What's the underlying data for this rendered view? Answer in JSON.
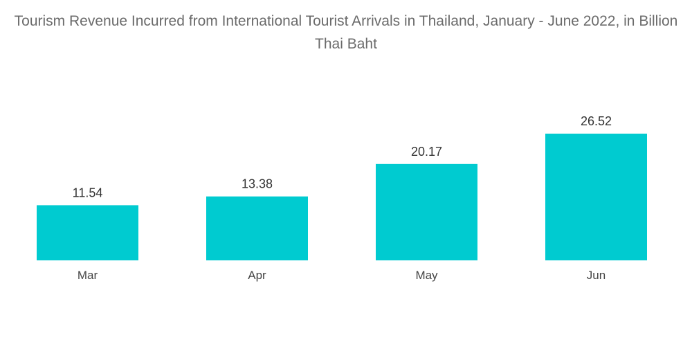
{
  "title": "Tourism Revenue Incurred from International Tourist Arrivals in Thailand, January - June 2022, in Billion Thai Baht",
  "chart_data": {
    "type": "bar",
    "title": "Tourism Revenue Incurred from International Tourist Arrivals in Thailand, January - June 2022, in Billion Thai Baht",
    "categories": [
      "Mar",
      "Apr",
      "May",
      "Jun"
    ],
    "values": [
      11.54,
      13.38,
      20.17,
      26.52
    ],
    "value_labels": [
      "11.54",
      "13.38",
      "20.17",
      "26.52"
    ],
    "xlabel": "",
    "ylabel": "",
    "ylim": [
      0,
      30
    ],
    "grid": false,
    "legend": "none",
    "bar_color": "#00cbd0"
  }
}
